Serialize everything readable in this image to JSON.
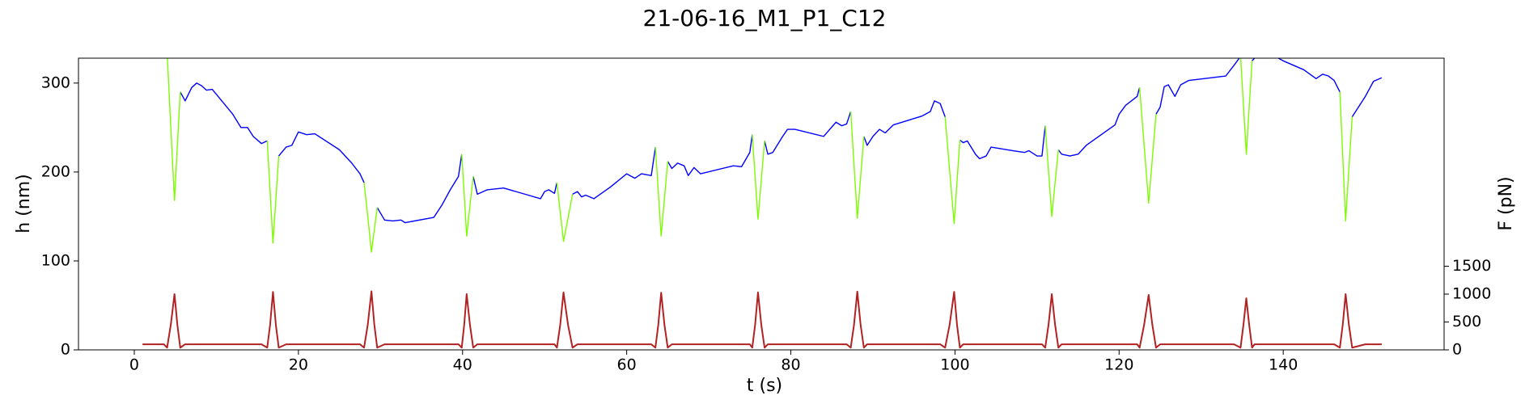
{
  "chart_data": {
    "type": "line",
    "title": "21-06-16_M1_P1_C12",
    "x_label": "t (s)",
    "y_label": "h (nm)",
    "y2_label": "F (pN)",
    "xlim": [
      -6.8,
      159.6
    ],
    "xticks": [
      0,
      20,
      40,
      60,
      80,
      100,
      120,
      140
    ],
    "ylim": [
      0,
      328
    ],
    "yticks": [
      0,
      100,
      200,
      300
    ],
    "y2lim": [
      0,
      5232
    ],
    "y2ticks": [
      0,
      500,
      1000,
      1500
    ],
    "x": [
      1,
      3.6,
      4.0,
      4.45,
      4.9,
      5.25,
      5.6,
      6.2,
      7.0,
      7.6,
      8.2,
      8.8,
      9.5,
      12,
      13,
      13.8,
      14.5,
      15.5,
      16.2,
      16.55,
      16.9,
      17.25,
      17.6,
      18.5,
      19.2,
      20,
      21,
      22,
      25,
      26.5,
      27.5,
      28.0,
      28.45,
      28.9,
      29.25,
      29.6,
      30.5,
      31.5,
      32.5,
      33,
      36.5,
      37.5,
      38.5,
      39.5,
      39.9,
      40.2,
      40.5,
      40.9,
      41.3,
      41.8,
      43,
      45,
      48,
      49.5,
      50,
      50.5,
      51.2,
      51.5,
      51.9,
      52.3,
      52.85,
      53.4,
      54,
      54.5,
      55,
      56,
      58,
      60,
      61,
      61.8,
      63,
      63.5,
      63.85,
      64.2,
      64.6,
      65.0,
      65.5,
      66.2,
      67,
      67.5,
      68.2,
      69,
      73,
      74,
      75,
      75.3,
      75.65,
      76.0,
      76.4,
      76.8,
      77.2,
      77.8,
      79,
      79.6,
      80.5,
      84,
      85.5,
      86.2,
      86.8,
      87.3,
      87.7,
      88.1,
      88.5,
      88.9,
      89.3,
      90,
      90.8,
      91.5,
      92.5,
      96,
      97,
      97.5,
      98.2,
      98.8,
      99.35,
      99.9,
      100.25,
      100.6,
      101,
      101.5,
      102.5,
      103,
      103.8,
      104.4,
      107,
      108.5,
      109,
      110,
      110.6,
      111.0,
      111.4,
      111.8,
      112.2,
      112.6,
      113,
      114,
      115,
      116,
      119.5,
      120,
      120.8,
      121.5,
      122.2,
      122.5,
      123.05,
      123.6,
      124.05,
      124.5,
      125,
      125.5,
      126,
      126.8,
      127.5,
      128.5,
      133,
      134,
      134.8,
      135.15,
      135.5,
      135.85,
      136.2,
      136.5,
      137.5,
      139,
      140,
      142.5,
      144,
      144.8,
      145.5,
      146.2,
      146.9,
      147.25,
      147.6,
      148.0,
      148.4,
      150,
      151,
      152
    ],
    "series": [
      {
        "color": "#0000ff",
        "axis": "y",
        "values": [
          null,
          null,
          null,
          null,
          null,
          null,
          290,
          280,
          295,
          300,
          297,
          292,
          293,
          265,
          250,
          250,
          240,
          232,
          235,
          null,
          null,
          null,
          218,
          228,
          230,
          245,
          242,
          243,
          225,
          210,
          198,
          188,
          null,
          null,
          null,
          160,
          146,
          145,
          146,
          143,
          149,
          163,
          180,
          195,
          220,
          null,
          null,
          null,
          195,
          175,
          180,
          182,
          174,
          170,
          178,
          180,
          176,
          188,
          null,
          null,
          null,
          175,
          178,
          172,
          174,
          170,
          183,
          198,
          193,
          198,
          196,
          228,
          null,
          null,
          null,
          212,
          204,
          210,
          207,
          196,
          205,
          198,
          207,
          206,
          222,
          242,
          null,
          null,
          null,
          235,
          220,
          222,
          240,
          248,
          248,
          240,
          256,
          252,
          254,
          268,
          null,
          null,
          null,
          240,
          230,
          240,
          248,
          244,
          253,
          263,
          268,
          280,
          277,
          262,
          null,
          null,
          null,
          236,
          233,
          235,
          220,
          215,
          218,
          228,
          224,
          222,
          224,
          218,
          218,
          252,
          null,
          null,
          null,
          225,
          220,
          218,
          220,
          230,
          253,
          265,
          275,
          280,
          285,
          295,
          null,
          null,
          null,
          265,
          273,
          296,
          298,
          285,
          298,
          303,
          308,
          320,
          330,
          null,
          null,
          null,
          325,
          328,
          330,
          330,
          325,
          315,
          305,
          310,
          308,
          303,
          290,
          null,
          null,
          null,
          262,
          285,
          302,
          306
        ]
      },
      {
        "color": "#7cfc00",
        "axis": "y",
        "values": [
          null,
          null,
          335,
          250,
          168,
          230,
          290,
          null,
          null,
          null,
          null,
          null,
          null,
          null,
          null,
          null,
          null,
          null,
          235,
          178,
          120,
          169,
          218,
          null,
          null,
          null,
          null,
          null,
          null,
          null,
          null,
          188,
          150,
          110,
          135,
          160,
          null,
          null,
          null,
          null,
          null,
          null,
          null,
          null,
          220,
          175,
          128,
          162,
          195,
          null,
          null,
          null,
          null,
          null,
          null,
          null,
          null,
          188,
          155,
          122,
          148,
          175,
          null,
          null,
          null,
          null,
          null,
          null,
          null,
          null,
          null,
          228,
          178,
          128,
          170,
          212,
          null,
          null,
          null,
          null,
          null,
          null,
          null,
          null,
          null,
          242,
          195,
          147,
          191,
          235,
          null,
          null,
          null,
          null,
          null,
          null,
          null,
          null,
          null,
          268,
          208,
          148,
          194,
          240,
          null,
          null,
          null,
          null,
          null,
          null,
          null,
          null,
          null,
          262,
          202,
          142,
          189,
          236,
          null,
          null,
          null,
          null,
          null,
          null,
          null,
          null,
          null,
          null,
          null,
          252,
          201,
          150,
          188,
          225,
          null,
          null,
          null,
          null,
          null,
          null,
          null,
          null,
          null,
          295,
          230,
          165,
          215,
          265,
          null,
          null,
          null,
          null,
          null,
          null,
          null,
          null,
          330,
          275,
          220,
          273,
          325,
          null,
          null,
          null,
          null,
          null,
          null,
          null,
          null,
          null,
          290,
          218,
          145,
          204,
          262,
          null,
          null,
          null
        ]
      },
      {
        "color": "#b22222",
        "axis": "y2",
        "values": [
          100,
          100,
          40,
          450,
          1000,
          450,
          40,
          100,
          100,
          100,
          100,
          100,
          100,
          100,
          100,
          100,
          100,
          100,
          40,
          450,
          1040,
          450,
          40,
          100,
          100,
          100,
          100,
          100,
          100,
          100,
          100,
          40,
          450,
          1050,
          450,
          40,
          100,
          100,
          100,
          100,
          100,
          100,
          100,
          100,
          40,
          450,
          1000,
          450,
          40,
          100,
          100,
          100,
          100,
          100,
          100,
          100,
          100,
          40,
          450,
          1030,
          450,
          40,
          100,
          100,
          100,
          100,
          100,
          100,
          100,
          100,
          100,
          40,
          450,
          1025,
          450,
          40,
          100,
          100,
          100,
          100,
          100,
          100,
          100,
          100,
          100,
          40,
          450,
          1030,
          450,
          40,
          100,
          100,
          100,
          100,
          100,
          100,
          100,
          100,
          100,
          40,
          450,
          1045,
          450,
          40,
          100,
          100,
          100,
          100,
          100,
          100,
          100,
          100,
          100,
          40,
          450,
          1040,
          450,
          40,
          100,
          100,
          100,
          100,
          100,
          100,
          100,
          100,
          100,
          100,
          100,
          40,
          450,
          1000,
          450,
          40,
          100,
          100,
          100,
          100,
          100,
          100,
          100,
          100,
          100,
          40,
          450,
          985,
          450,
          40,
          100,
          100,
          100,
          100,
          100,
          100,
          100,
          100,
          40,
          450,
          925,
          450,
          40,
          100,
          100,
          100,
          100,
          100,
          100,
          100,
          100,
          100,
          40,
          450,
          1000,
          450,
          40,
          100,
          100,
          100
        ]
      }
    ]
  }
}
